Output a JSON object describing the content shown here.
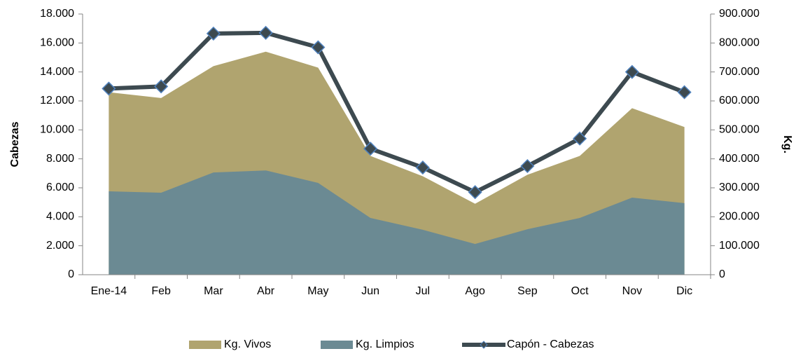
{
  "chart_data": {
    "type": "combo",
    "y_label": "Cabezas",
    "y2_label": "Kg.",
    "categories": [
      "Ene-14",
      "Feb",
      "Mar",
      "Abr",
      "May",
      "Jun",
      "Jul",
      "Ago",
      "Sep",
      "Oct",
      "Nov",
      "Dic"
    ],
    "series": [
      {
        "name": "Kg. Vivos",
        "type": "area",
        "axis": "y2",
        "color": "#b0a46f",
        "values": [
          630000,
          610000,
          720000,
          770000,
          715000,
          410000,
          340000,
          245000,
          345000,
          410000,
          575000,
          510000
        ]
      },
      {
        "name": "Kg. Limpios",
        "type": "area",
        "axis": "y2",
        "color": "#6b8a93",
        "values": [
          288000,
          283000,
          353000,
          360000,
          317000,
          196000,
          155000,
          106000,
          157000,
          196000,
          266000,
          247000
        ]
      },
      {
        "name": "Capón - Cabezas",
        "type": "line",
        "axis": "y",
        "color": "#3d4a50",
        "marker_edge": "#4f81bd",
        "values": [
          12850,
          13000,
          16650,
          16700,
          15700,
          8700,
          7400,
          5700,
          7500,
          9400,
          14000,
          12600
        ]
      }
    ],
    "ylim": [
      0,
      18000
    ],
    "yticks": [
      0,
      {
        "value": 2000,
        "label": "2.000"
      },
      {
        "value": 4000,
        "label": "4.000"
      },
      {
        "value": 6000,
        "label": "6.000"
      },
      {
        "value": 8000,
        "label": "8.000"
      },
      {
        "value": 10000,
        "label": "10.000"
      },
      {
        "value": 12000,
        "label": "12.000"
      },
      {
        "value": 14000,
        "label": "14.000"
      },
      {
        "value": 16000,
        "label": "16.000"
      },
      {
        "value": 18000,
        "label": "18.000"
      }
    ],
    "y2lim": [
      0,
      900000
    ],
    "y2ticks": [
      0,
      {
        "value": 100000,
        "label": "100.000"
      },
      {
        "value": 200000,
        "label": "200.000"
      },
      {
        "value": 300000,
        "label": "300.000"
      },
      {
        "value": 400000,
        "label": "400.000"
      },
      {
        "value": 500000,
        "label": "500.000"
      },
      {
        "value": 600000,
        "label": "600.000"
      },
      {
        "value": 700000,
        "label": "700.000"
      },
      {
        "value": 800000,
        "label": "800.000"
      },
      {
        "value": 900000,
        "label": "900.000"
      }
    ],
    "legend": "bottom",
    "grid": false
  }
}
